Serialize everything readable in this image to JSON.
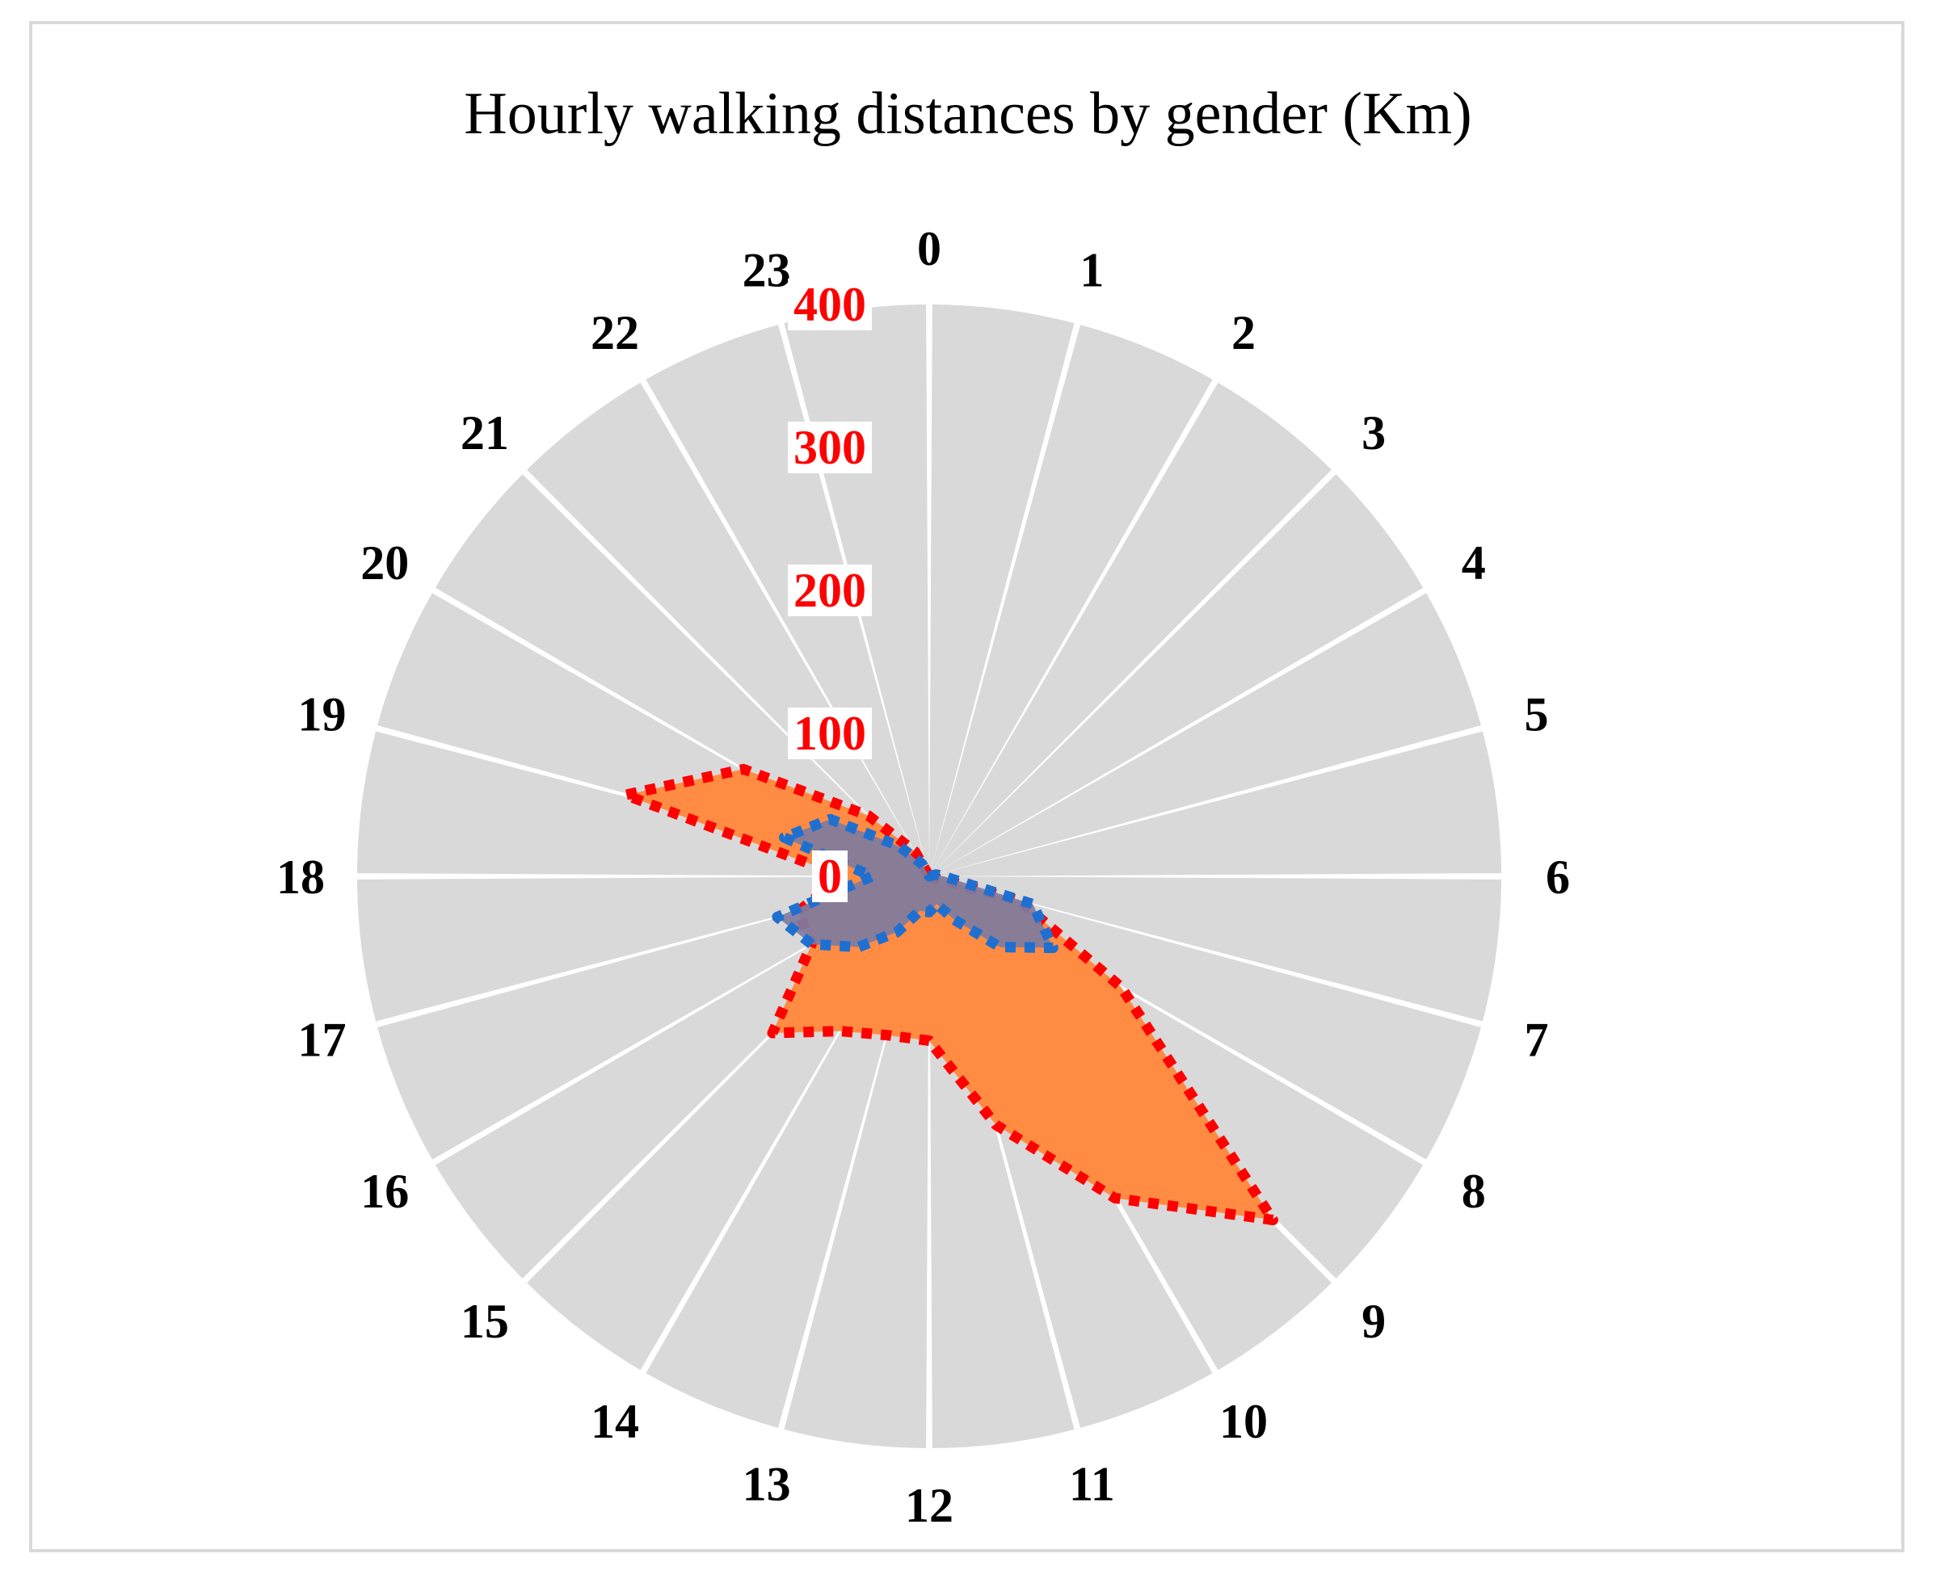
{
  "chart_data": {
    "type": "radar",
    "title": "Hourly walking distances by gender (Km)",
    "categories": [
      "0",
      "1",
      "2",
      "3",
      "4",
      "5",
      "6",
      "7",
      "8",
      "9",
      "10",
      "11",
      "12",
      "13",
      "14",
      "15",
      "16",
      "17",
      "18",
      "19",
      "20",
      "21",
      "22",
      "23"
    ],
    "radial_ticks": [
      "0",
      "100",
      "200",
      "300",
      "400"
    ],
    "rlim": [
      0,
      400
    ],
    "grid": true,
    "series": [
      {
        "values": [
          0,
          0,
          0,
          0,
          0,
          0,
          0,
          65,
          155,
          340,
          260,
          180,
          115,
          115,
          125,
          155,
          95,
          95,
          60,
          220,
          150,
          60,
          20,
          0
        ],
        "fill": "#ff8c42",
        "stroke": "#ff0000"
      },
      {
        "values": [
          0,
          0,
          0,
          0,
          0,
          5,
          10,
          75,
          100,
          70,
          35,
          20,
          25,
          25,
          45,
          70,
          95,
          110,
          40,
          105,
          80,
          30,
          10,
          0
        ],
        "fill": "#7f7b9e",
        "stroke": "#1f6fd1"
      }
    ]
  }
}
